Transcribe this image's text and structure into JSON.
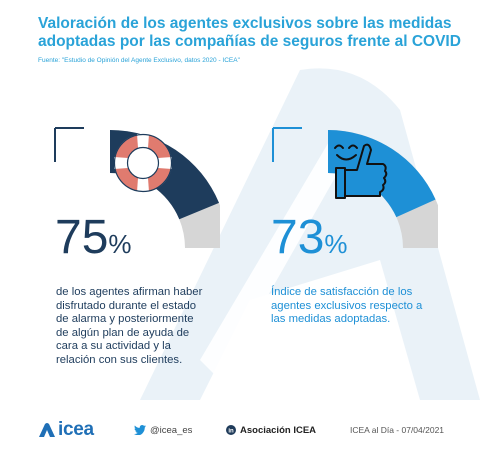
{
  "title_line1": "Valoración de los agentes exclusivos sobre las medidas",
  "title_line2": "adoptadas por las compañías de seguros frente al COVID",
  "source": "Fuente: \"Estudio de Opinión del Agente Exclusivo, datos 2020 - ICEA\"",
  "colors": {
    "title": "#2aa3d8",
    "dark_navy": "#1e3c5c",
    "light_blue": "#1e90d6",
    "grey": "#d6d6d6",
    "bg_mark": "#e6f0f6"
  },
  "chart_data": [
    {
      "type": "gauge",
      "value": 75,
      "max": 100,
      "value_text": "75",
      "unit": "%",
      "color": "#1e3c5c",
      "icon": "lifebuoy-icon",
      "description": "de los agentes afirman haber\ndisfrutado durante el estado\nde alarma y posteriormente\nde algún plan de ayuda de\ncara a su actividad y la\nrelación con sus clientes."
    },
    {
      "type": "gauge",
      "value": 73,
      "max": 100,
      "value_text": "73",
      "unit": "%",
      "color": "#1e90d6",
      "icon": "thumbs-up-smile-icon",
      "description": "Índice de satisfacción de los\nagentes exclusivos respecto a\nlas medidas adoptadas."
    }
  ],
  "footer": {
    "logo": "icea",
    "twitter": "@icea_es",
    "linkedin": "Asociación ICEA",
    "credit": "ICEA al Día - 07/04/2021"
  }
}
